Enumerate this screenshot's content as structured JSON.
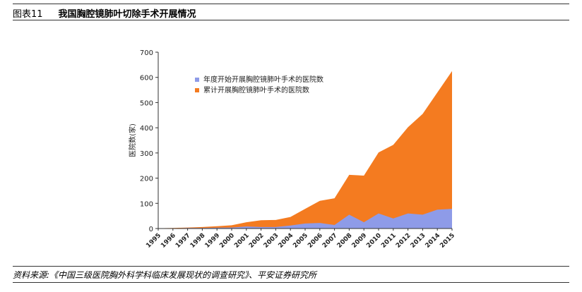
{
  "header": {
    "label": "图表11",
    "title": "我国胸腔镜肺叶切除手术开展情况"
  },
  "source": "资料来源:《中国三级医院胸外科学科临床发展现状的调查研究》、平安证券研究所",
  "chart_data": {
    "type": "area",
    "title": "",
    "xlabel": "",
    "ylabel": "医院数(家)",
    "ylim": [
      0,
      700
    ],
    "y_ticks": [
      0,
      100,
      200,
      300,
      400,
      500,
      600,
      700
    ],
    "grid": false,
    "legend_position": "top-left",
    "categories": [
      "1995",
      "1996",
      "1997",
      "1998",
      "1999",
      "2000",
      "2001",
      "2002",
      "2003",
      "2004",
      "2005",
      "2006",
      "2007",
      "2008",
      "2009",
      "2010",
      "2011",
      "2012",
      "2013",
      "2014",
      "2015"
    ],
    "series": [
      {
        "name": "年度开始开展胸腔镜肺叶手术的医院数",
        "color": "#8e9be8",
        "values": [
          1,
          1,
          2,
          2,
          3,
          4,
          8,
          6,
          6,
          12,
          20,
          22,
          14,
          55,
          25,
          60,
          40,
          60,
          55,
          75,
          78
        ]
      },
      {
        "name": "累计开展胸腔镜肺叶手术的医院数",
        "color": "#f47b20",
        "values": [
          1,
          2,
          4,
          6,
          9,
          13,
          25,
          33,
          34,
          46,
          78,
          110,
          120,
          213,
          210,
          302,
          332,
          402,
          455,
          540,
          625
        ]
      }
    ]
  }
}
